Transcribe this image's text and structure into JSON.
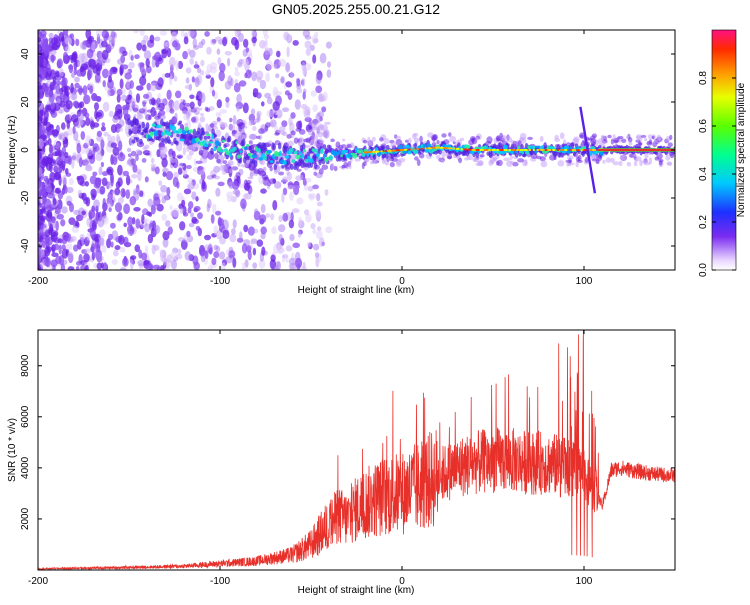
{
  "title": "GN05.2025.255.00.21.G12",
  "colors": {
    "snr_line": "#e8302a",
    "core_line": "#e8302a",
    "axis": "#000000",
    "scatter": "#6a22e6"
  },
  "chart_data": [
    {
      "type": "heatmap",
      "name": "spectrogram",
      "xlabel": "Height of straight line (km)",
      "ylabel": "Frequency (Hz)",
      "xlim": [
        -200,
        150
      ],
      "ylim": [
        -50,
        50
      ],
      "x_ticks": [
        -200,
        -100,
        0,
        100
      ],
      "x_tick_labels": [
        "-200",
        "-100",
        "0",
        "100"
      ],
      "y_ticks": [
        -40,
        -20,
        0,
        20,
        40
      ],
      "y_tick_labels": [
        "-40",
        "-20",
        "0",
        "20",
        "40"
      ],
      "ridge": {
        "description": "dominant frequency track",
        "x": [
          -150,
          -120,
          -100,
          -80,
          -60,
          -40,
          -20,
          0,
          20,
          40,
          60,
          80,
          100,
          110,
          150
        ],
        "y": [
          8,
          7,
          2,
          -2,
          -3,
          -2,
          -1,
          0,
          1,
          0,
          0,
          0,
          0,
          0,
          0
        ]
      },
      "flare": {
        "x": [
          98,
          106
        ],
        "y_top": 18,
        "y_bottom": -18
      },
      "colorbar": {
        "label": "Normalized spectral amplitude",
        "range": [
          0,
          1
        ],
        "ticks": [
          0.0,
          0.2,
          0.4,
          0.6,
          0.8
        ],
        "tick_labels": [
          "0.0",
          "0.2",
          "0.4",
          "0.6",
          "0.8"
        ]
      }
    },
    {
      "type": "line",
      "name": "snr",
      "xlabel": "Height of straight line (km)",
      "ylabel": "SNR (10 * v/v)",
      "xlim": [
        -200,
        150
      ],
      "ylim": [
        0,
        9400
      ],
      "x_ticks": [
        -200,
        -100,
        0,
        100
      ],
      "x_tick_labels": [
        "-200",
        "-100",
        "0",
        "100"
      ],
      "y_ticks": [
        2000,
        4000,
        6000,
        8000
      ],
      "y_tick_labels": [
        "2000",
        "4000",
        "6000",
        "8000"
      ],
      "series": [
        {
          "name": "SNR envelope",
          "x": [
            -200,
            -150,
            -120,
            -100,
            -80,
            -60,
            -50,
            -40,
            -35,
            -30,
            -25,
            -20,
            -10,
            0,
            10,
            20,
            30,
            40,
            50,
            60,
            70,
            80,
            90,
            100,
            105,
            110,
            115,
            120,
            130,
            140,
            150
          ],
          "values": [
            50,
            100,
            150,
            250,
            350,
            600,
            1000,
            1800,
            2100,
            2000,
            2400,
            2600,
            2900,
            3000,
            3300,
            3700,
            4000,
            4200,
            4300,
            4300,
            4200,
            4200,
            4000,
            3700,
            3300,
            2500,
            3900,
            4000,
            3850,
            3750,
            3700
          ]
        }
      ]
    }
  ]
}
